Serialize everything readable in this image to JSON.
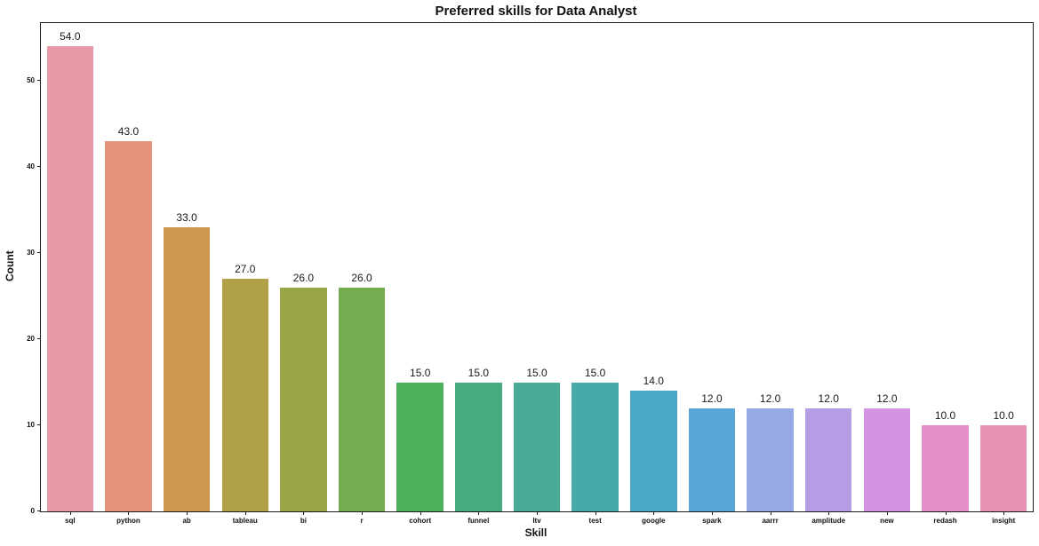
{
  "chart_data": {
    "type": "bar",
    "title": "Preferred skills for Data Analyst",
    "xlabel": "Skill",
    "ylabel": "Count",
    "categories": [
      "sql",
      "python",
      "ab",
      "tableau",
      "bi",
      "r",
      "cohort",
      "funnel",
      "ltv",
      "test",
      "google",
      "spark",
      "aarrr",
      "amplitude",
      "new",
      "redash",
      "insight"
    ],
    "values": [
      54,
      43,
      33,
      27,
      26,
      26,
      15,
      15,
      15,
      15,
      14,
      12,
      12,
      12,
      12,
      10,
      10
    ],
    "bar_labels": [
      "54.0",
      "43.0",
      "33.0",
      "27.0",
      "26.0",
      "26.0",
      "15.0",
      "15.0",
      "15.0",
      "15.0",
      "14.0",
      "12.0",
      "12.0",
      "12.0",
      "12.0",
      "10.0",
      "10.0"
    ],
    "bar_colors": [
      "#e899a6",
      "#e4937b",
      "#cd984d",
      "#b0a146",
      "#9aa546",
      "#73ac51",
      "#4daf5c",
      "#47ab82",
      "#48ab96",
      "#47a9a9",
      "#4ba9c6",
      "#57a6d7",
      "#97a9e4",
      "#b59ee6",
      "#d494e4",
      "#e38fca",
      "#e892b5"
    ],
    "yticks": [
      0,
      10,
      20,
      30,
      40,
      50
    ],
    "ylim": [
      0,
      56.7
    ],
    "grid": false,
    "legend": null,
    "spine_color": "#1a1a1a",
    "background": "#ffffff"
  }
}
